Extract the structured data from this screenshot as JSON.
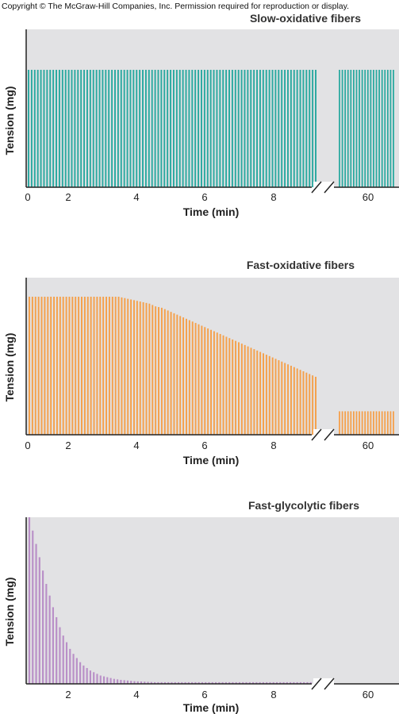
{
  "copyright": "Copyright © The McGraw-Hill Companies, Inc. Permission required for reproduction or display.",
  "colors": {
    "slow": "#2aa9a0",
    "fast_ox": "#f5a04a",
    "glyco": "#b98fc7",
    "panel_bg": "#e2e2e4"
  },
  "chart_data": [
    {
      "type": "bar",
      "title": "Slow-oxidative fibers",
      "xlabel": "Time (min)",
      "ylabel": "Tension (mg)",
      "x_ticks": [
        "0",
        "2",
        "4",
        "6",
        "8",
        "60"
      ],
      "xlim": [
        0,
        9
      ],
      "axis_break": "after 9 min, resumes near 60 min",
      "ylim": [
        0,
        1
      ],
      "tension_first_segment": [
        1,
        1,
        1,
        1,
        1,
        1,
        1,
        1,
        1,
        1,
        1,
        1,
        1,
        1,
        1,
        1,
        1,
        1,
        1,
        1,
        1,
        1,
        1,
        1,
        1,
        1,
        1,
        1,
        1,
        1,
        1,
        1,
        1,
        1,
        1,
        1,
        1,
        1,
        1,
        1,
        1,
        1,
        1,
        1,
        1,
        1,
        1,
        1,
        1,
        1,
        1,
        1,
        1,
        1,
        1,
        1,
        1,
        1,
        1,
        1,
        1,
        1,
        1,
        1,
        1,
        1,
        1,
        1,
        1,
        1,
        1,
        1,
        1,
        1,
        1,
        1,
        1,
        1,
        1,
        1,
        1,
        1,
        1,
        1,
        1,
        1,
        1,
        1,
        1,
        1,
        1,
        1,
        1,
        1
      ],
      "tension_after_break": [
        1,
        1,
        1,
        1,
        1,
        1,
        1,
        1,
        1,
        1,
        1,
        1,
        1,
        1,
        1,
        1,
        1,
        1,
        1,
        1
      ]
    },
    {
      "type": "bar",
      "title": "Fast-oxidative fibers",
      "xlabel": "Time (min)",
      "ylabel": "Tension (mg)",
      "x_ticks": [
        "0",
        "2",
        "4",
        "6",
        "8",
        "60"
      ],
      "xlim": [
        0,
        9
      ],
      "axis_break": "after 9 min, resumes near 60 min",
      "ylim": [
        0,
        1
      ],
      "tension_first_segment": [
        1,
        1,
        1,
        1,
        1,
        1,
        1,
        1,
        1,
        1,
        1,
        1,
        1,
        1,
        1,
        1,
        1,
        1,
        1,
        1,
        1,
        1,
        1,
        1,
        1,
        1,
        1,
        1,
        1,
        1,
        0.995,
        0.99,
        0.985,
        0.98,
        0.975,
        0.97,
        0.965,
        0.96,
        0.955,
        0.95,
        0.94,
        0.93,
        0.925,
        0.92,
        0.91,
        0.9,
        0.89,
        0.88,
        0.87,
        0.86,
        0.85,
        0.84,
        0.83,
        0.82,
        0.81,
        0.8,
        0.79,
        0.78,
        0.77,
        0.76,
        0.75,
        0.74,
        0.73,
        0.72,
        0.71,
        0.7,
        0.69,
        0.68,
        0.67,
        0.66,
        0.65,
        0.64,
        0.63,
        0.62,
        0.61,
        0.6,
        0.59,
        0.58,
        0.57,
        0.56,
        0.55,
        0.54,
        0.53,
        0.52,
        0.51,
        0.5,
        0.49,
        0.48,
        0.47,
        0.46,
        0.45,
        0.44,
        0.43,
        0.42
      ],
      "tension_after_break": [
        0.17,
        0.17,
        0.17,
        0.17,
        0.17,
        0.17,
        0.17,
        0.17,
        0.17,
        0.17,
        0.17,
        0.17,
        0.17,
        0.17,
        0.17,
        0.17,
        0.17,
        0.17,
        0.17,
        0.17
      ]
    },
    {
      "type": "bar",
      "title": "Fast-glycolytic fibers",
      "xlabel": "Time (min)",
      "ylabel": "Tension (mg)",
      "x_ticks": [
        "2",
        "4",
        "6",
        "8",
        "60"
      ],
      "xlim": [
        0,
        9
      ],
      "axis_break": "after 9 min, resumes near 60 min",
      "ylim": [
        0,
        1
      ],
      "tension_first_segment": [
        1,
        0.92,
        0.84,
        0.76,
        0.68,
        0.6,
        0.53,
        0.46,
        0.4,
        0.34,
        0.29,
        0.25,
        0.21,
        0.18,
        0.155,
        0.13,
        0.11,
        0.095,
        0.08,
        0.07,
        0.06,
        0.05,
        0.045,
        0.04,
        0.035,
        0.03,
        0.027,
        0.024,
        0.022,
        0.02,
        0.018,
        0.016,
        0.015,
        0.014,
        0.013,
        0.012,
        0.011,
        0.01,
        0.01,
        0.01,
        0.01,
        0.01,
        0.01,
        0.01,
        0.01,
        0.01,
        0.01,
        0.01,
        0.01,
        0.01,
        0.01,
        0.01,
        0.01,
        0.01,
        0.01,
        0.01,
        0.01,
        0.01,
        0.01,
        0.01,
        0.01,
        0.01,
        0.01,
        0.01,
        0.01,
        0.01,
        0.01,
        0.01,
        0.01,
        0.01,
        0.01,
        0.01,
        0.01,
        0.01,
        0.01,
        0.01,
        0.01,
        0.01,
        0.01,
        0.01,
        0.01,
        0.01,
        0.01,
        0.01,
        0.01
      ],
      "tension_after_break": []
    }
  ]
}
